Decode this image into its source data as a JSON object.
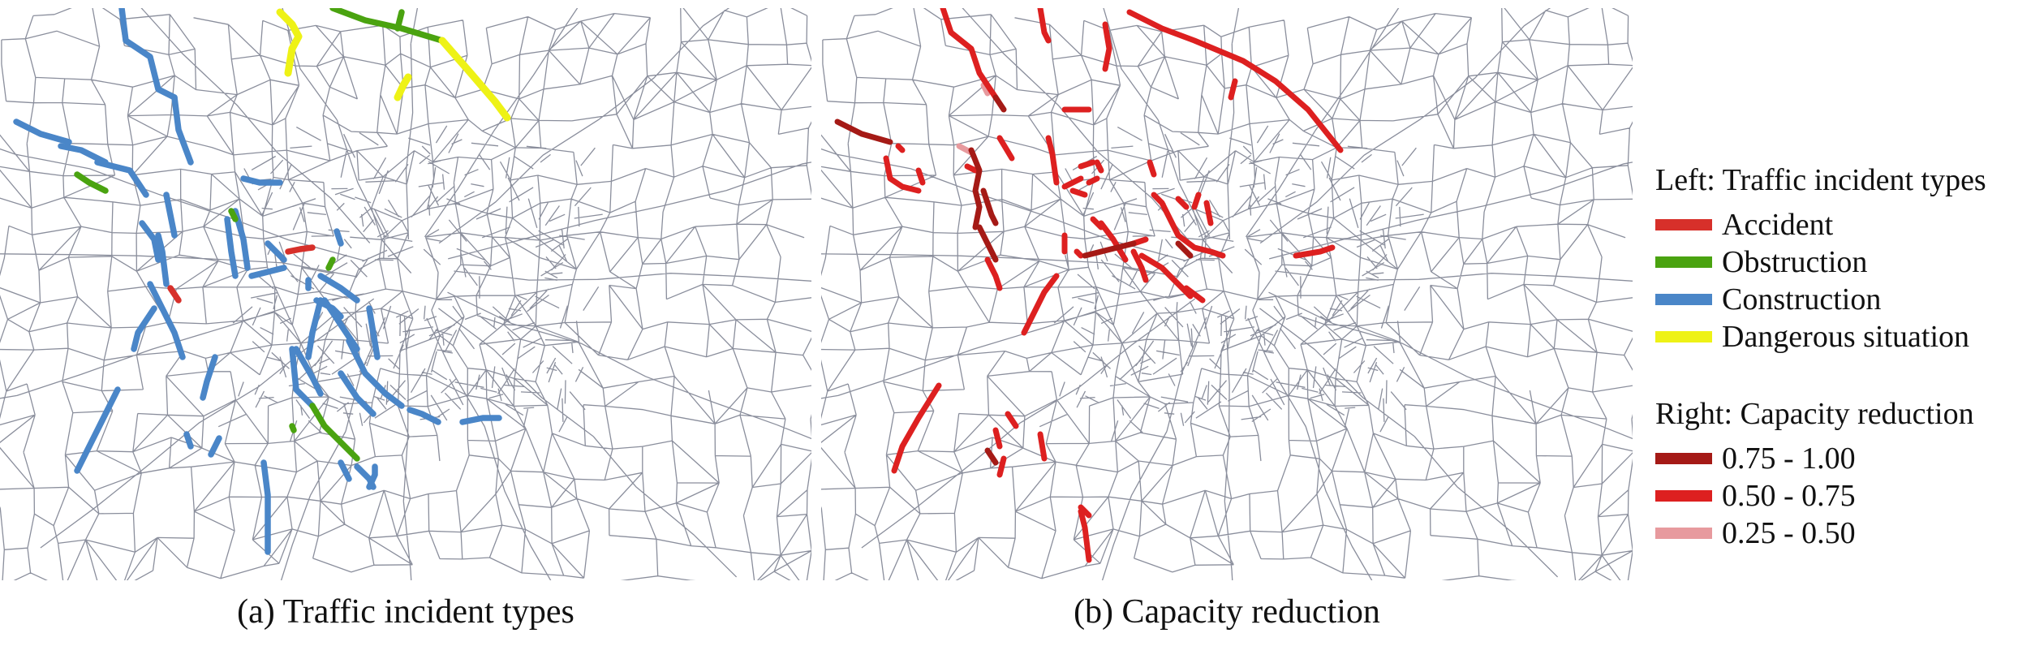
{
  "captions": {
    "left": "(a) Traffic incident types",
    "right": "(b) Capacity reduction"
  },
  "legend": {
    "left_title": "Left: Traffic incident types",
    "incident_types": [
      {
        "label": "Accident",
        "color": "#d7302a"
      },
      {
        "label": "Obstruction",
        "color": "#4aa310"
      },
      {
        "label": "Construction",
        "color": "#4a86c8"
      },
      {
        "label": "Dangerous situation",
        "color": "#eef216"
      }
    ],
    "right_title": "Right: Capacity reduction",
    "capacity_levels": [
      {
        "label": "0.75 - 1.00",
        "color": "#a51a16"
      },
      {
        "label": "0.50 - 0.75",
        "color": "#dd2020"
      },
      {
        "label": "0.25 - 0.50",
        "color": "#e79a9e"
      }
    ]
  },
  "map_style": {
    "base_road_color": "#8a8e9c",
    "background": "#ffffff"
  }
}
